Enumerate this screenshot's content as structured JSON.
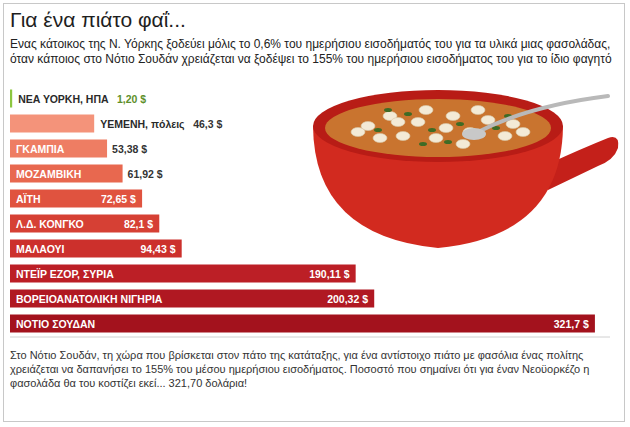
{
  "chart_data": {
    "type": "bar",
    "title": "Για ένα πιάτο φαΐ...",
    "subtitle": "Ενας κάτοικος της Ν. Υόρκης ξοδεύει μόλις το 0,6% του ημερήσιου εισοδήματός του για τα υλικά μιας φασολάδας, όταν κάποιος στο Νότιο Σουδάν χρειάζεται να ξοδέψει το 155% του ημερήσιου εισοδήματος του για το ίδιο φαγητό",
    "annotations": [
      "Στο Νότιο Σουδάν, τη χώρα που βρίσκεται στον πάτο της κατάταξης, για ένα αντίστοιχο πιάτο με φασόλια ένας πολίτης χρειάζεται να δαπανήσει το 155% του μέσου ημερήσιου εισοδήματος. Ποσοστό που σημαίνει ότι για έναν Νεοϋορκέζο η φασολάδα θα του κοστίζει εκεί... 321,70 δολάρια!"
    ],
    "orientation": "horizontal",
    "categories": [
      "ΝΕΑ ΥΟΡΚΗ, ΗΠΑ",
      "ΥΕΜΕΝΗ, πόλεις",
      "ΓΚΑΜΠΙΑ",
      "ΜΟΖΑΜΒΙΚΗ",
      "ΑΪΤΗ",
      "Λ.Δ. ΚΟΝΓΚΟ",
      "ΜΑΛΑΟΥΙ",
      "ΝΤΕΪΡ ΕΖΟΡ, ΣΥΡΙΑ",
      "ΒΟΡΕΙΟΑΝΑΤΟΛΙΚΗ ΝΙΓΗΡΙΑ",
      "ΝΟΤΙΟ ΣΟΥΔΑΝ"
    ],
    "values": [
      1.2,
      46.3,
      53.38,
      61.92,
      72.65,
      82.1,
      94.43,
      190.11,
      200.32,
      321.7
    ],
    "value_labels": [
      "1,20 $",
      "46,3 $",
      "53,38 $",
      "61,92 $",
      "72,65 $",
      "82,1 $",
      "94,43 $",
      "190,11 $",
      "200,32 $",
      "321,7 $"
    ],
    "colors": [
      "#8cc63f",
      "#f4937a",
      "#ee7d63",
      "#e8684f",
      "#e0533f",
      "#d64034",
      "#cc302c",
      "#bc1f26",
      "#b01822",
      "#a3121d"
    ],
    "data_labels": true,
    "tick_labels": false,
    "grid": false,
    "xlim": [
      0,
      330
    ],
    "xticks": []
  }
}
